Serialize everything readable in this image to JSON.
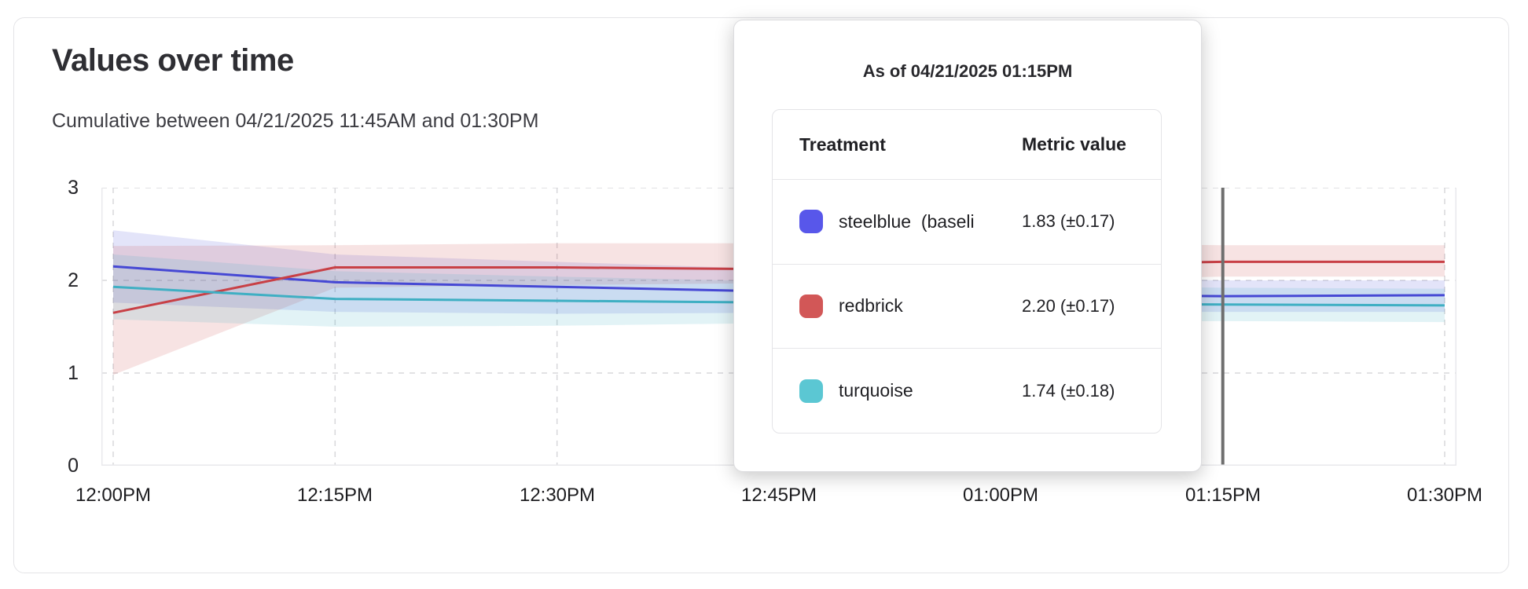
{
  "card": {
    "title": "Values over time",
    "subtitle": "Cumulative between 04/21/2025 11:45AM and 01:30PM"
  },
  "chart_data": {
    "type": "line",
    "title": "Values over time",
    "subtitle": "Cumulative between 04/21/2025 11:45AM and 01:30PM",
    "x_labels": [
      "12:00PM",
      "12:15PM",
      "12:30PM",
      "12:45PM",
      "01:00PM",
      "01:15PM",
      "01:30PM"
    ],
    "ylim": [
      0,
      3
    ],
    "yticks": [
      0,
      1,
      2,
      3
    ],
    "grid": "dashed",
    "legend": "none",
    "plot_border_color": "#e9e9ec",
    "gridline_color": "#d8d8db",
    "series": [
      {
        "name": "steelblue (baseline)",
        "line_color": "#4648d4",
        "values": [
          2.15,
          1.98,
          1.93,
          1.88,
          1.85,
          1.83,
          1.84
        ],
        "band_upper": [
          2.54,
          2.28,
          2.2,
          2.12,
          2.05,
          2.0,
          2.0
        ],
        "band_lower": [
          1.76,
          1.66,
          1.64,
          1.65,
          1.66,
          1.66,
          1.66
        ]
      },
      {
        "name": "redbrick",
        "line_color": "#c84046",
        "values": [
          1.65,
          2.14,
          2.14,
          2.12,
          2.16,
          2.2,
          2.2
        ],
        "band_upper": [
          2.37,
          2.38,
          2.4,
          2.4,
          2.4,
          2.38,
          2.38
        ],
        "band_lower": [
          0.98,
          1.92,
          1.95,
          1.97,
          2.0,
          2.04,
          2.04
        ]
      },
      {
        "name": "turquoise",
        "line_color": "#3fafc3",
        "values": [
          1.93,
          1.8,
          1.78,
          1.76,
          1.75,
          1.74,
          1.73
        ],
        "band_upper": [
          2.28,
          2.1,
          2.04,
          1.99,
          1.95,
          1.92,
          1.91
        ],
        "band_lower": [
          1.58,
          1.5,
          1.51,
          1.54,
          1.55,
          1.56,
          1.55
        ]
      }
    ],
    "hover_marker": {
      "x_label": "01:15PM",
      "x_index": 5,
      "color": "#6e6e6e"
    }
  },
  "tooltip": {
    "title": "As of 04/21/2025 01:15PM",
    "col_treatment": "Treatment",
    "col_value": "Metric value",
    "rows": [
      {
        "treatment": "steelblue  (baseli",
        "value": "1.83 (±0.17)",
        "color": "#5857ea"
      },
      {
        "treatment": "redbrick",
        "value": "2.20 (±0.17)",
        "color": "#d25757"
      },
      {
        "treatment": "turquoise",
        "value": "1.74 (±0.18)",
        "color": "#5bc7d3"
      }
    ]
  }
}
